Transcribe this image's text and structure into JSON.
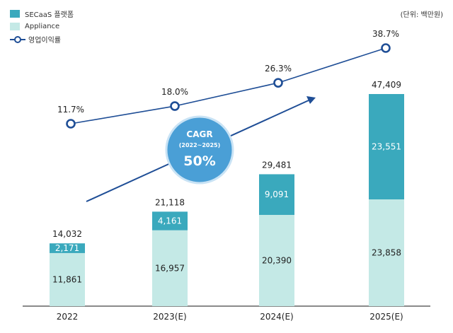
{
  "unit_label": "(단위: 백만원)",
  "legend": {
    "secaas": "SECaaS 플랫폼",
    "appliance": "Appliance",
    "margin": "영업이익률"
  },
  "colors": {
    "secaas": "#3aa9bd",
    "appliance": "#c4e9e6",
    "line": "#1f4e96",
    "cagr_bubble": "#4a9fd6",
    "arrow": "#1f4e96"
  },
  "cagr": {
    "title": "CAGR",
    "period": "(2022~2025)",
    "value": "50%"
  },
  "chart_data": {
    "type": "bar",
    "stacked": true,
    "categories": [
      "2022",
      "2023(E)",
      "2024(E)",
      "2025(E)"
    ],
    "series": [
      {
        "name": "Appliance",
        "values": [
          11861,
          16957,
          20390,
          23858
        ]
      },
      {
        "name": "SECaaS 플랫폼",
        "values": [
          2171,
          4161,
          9091,
          23551
        ]
      }
    ],
    "totals": [
      14032,
      21118,
      29481,
      47409
    ],
    "value_labels": {
      "appliance": [
        "11,861",
        "16,957",
        "20,390",
        "23,858"
      ],
      "secaas": [
        "2,171",
        "4,161",
        "9,091",
        "23,551"
      ],
      "totals": [
        "14,032",
        "21,118",
        "29,481",
        "47,409"
      ]
    },
    "line_series": {
      "name": "영업이익률",
      "values": [
        11.7,
        18.0,
        26.3,
        38.7
      ],
      "labels": [
        "11.7%",
        "18.0%",
        "26.3%",
        "38.7%"
      ]
    },
    "title": "",
    "xlabel": "",
    "ylabel": "",
    "ylim": [
      0,
      47409
    ]
  }
}
